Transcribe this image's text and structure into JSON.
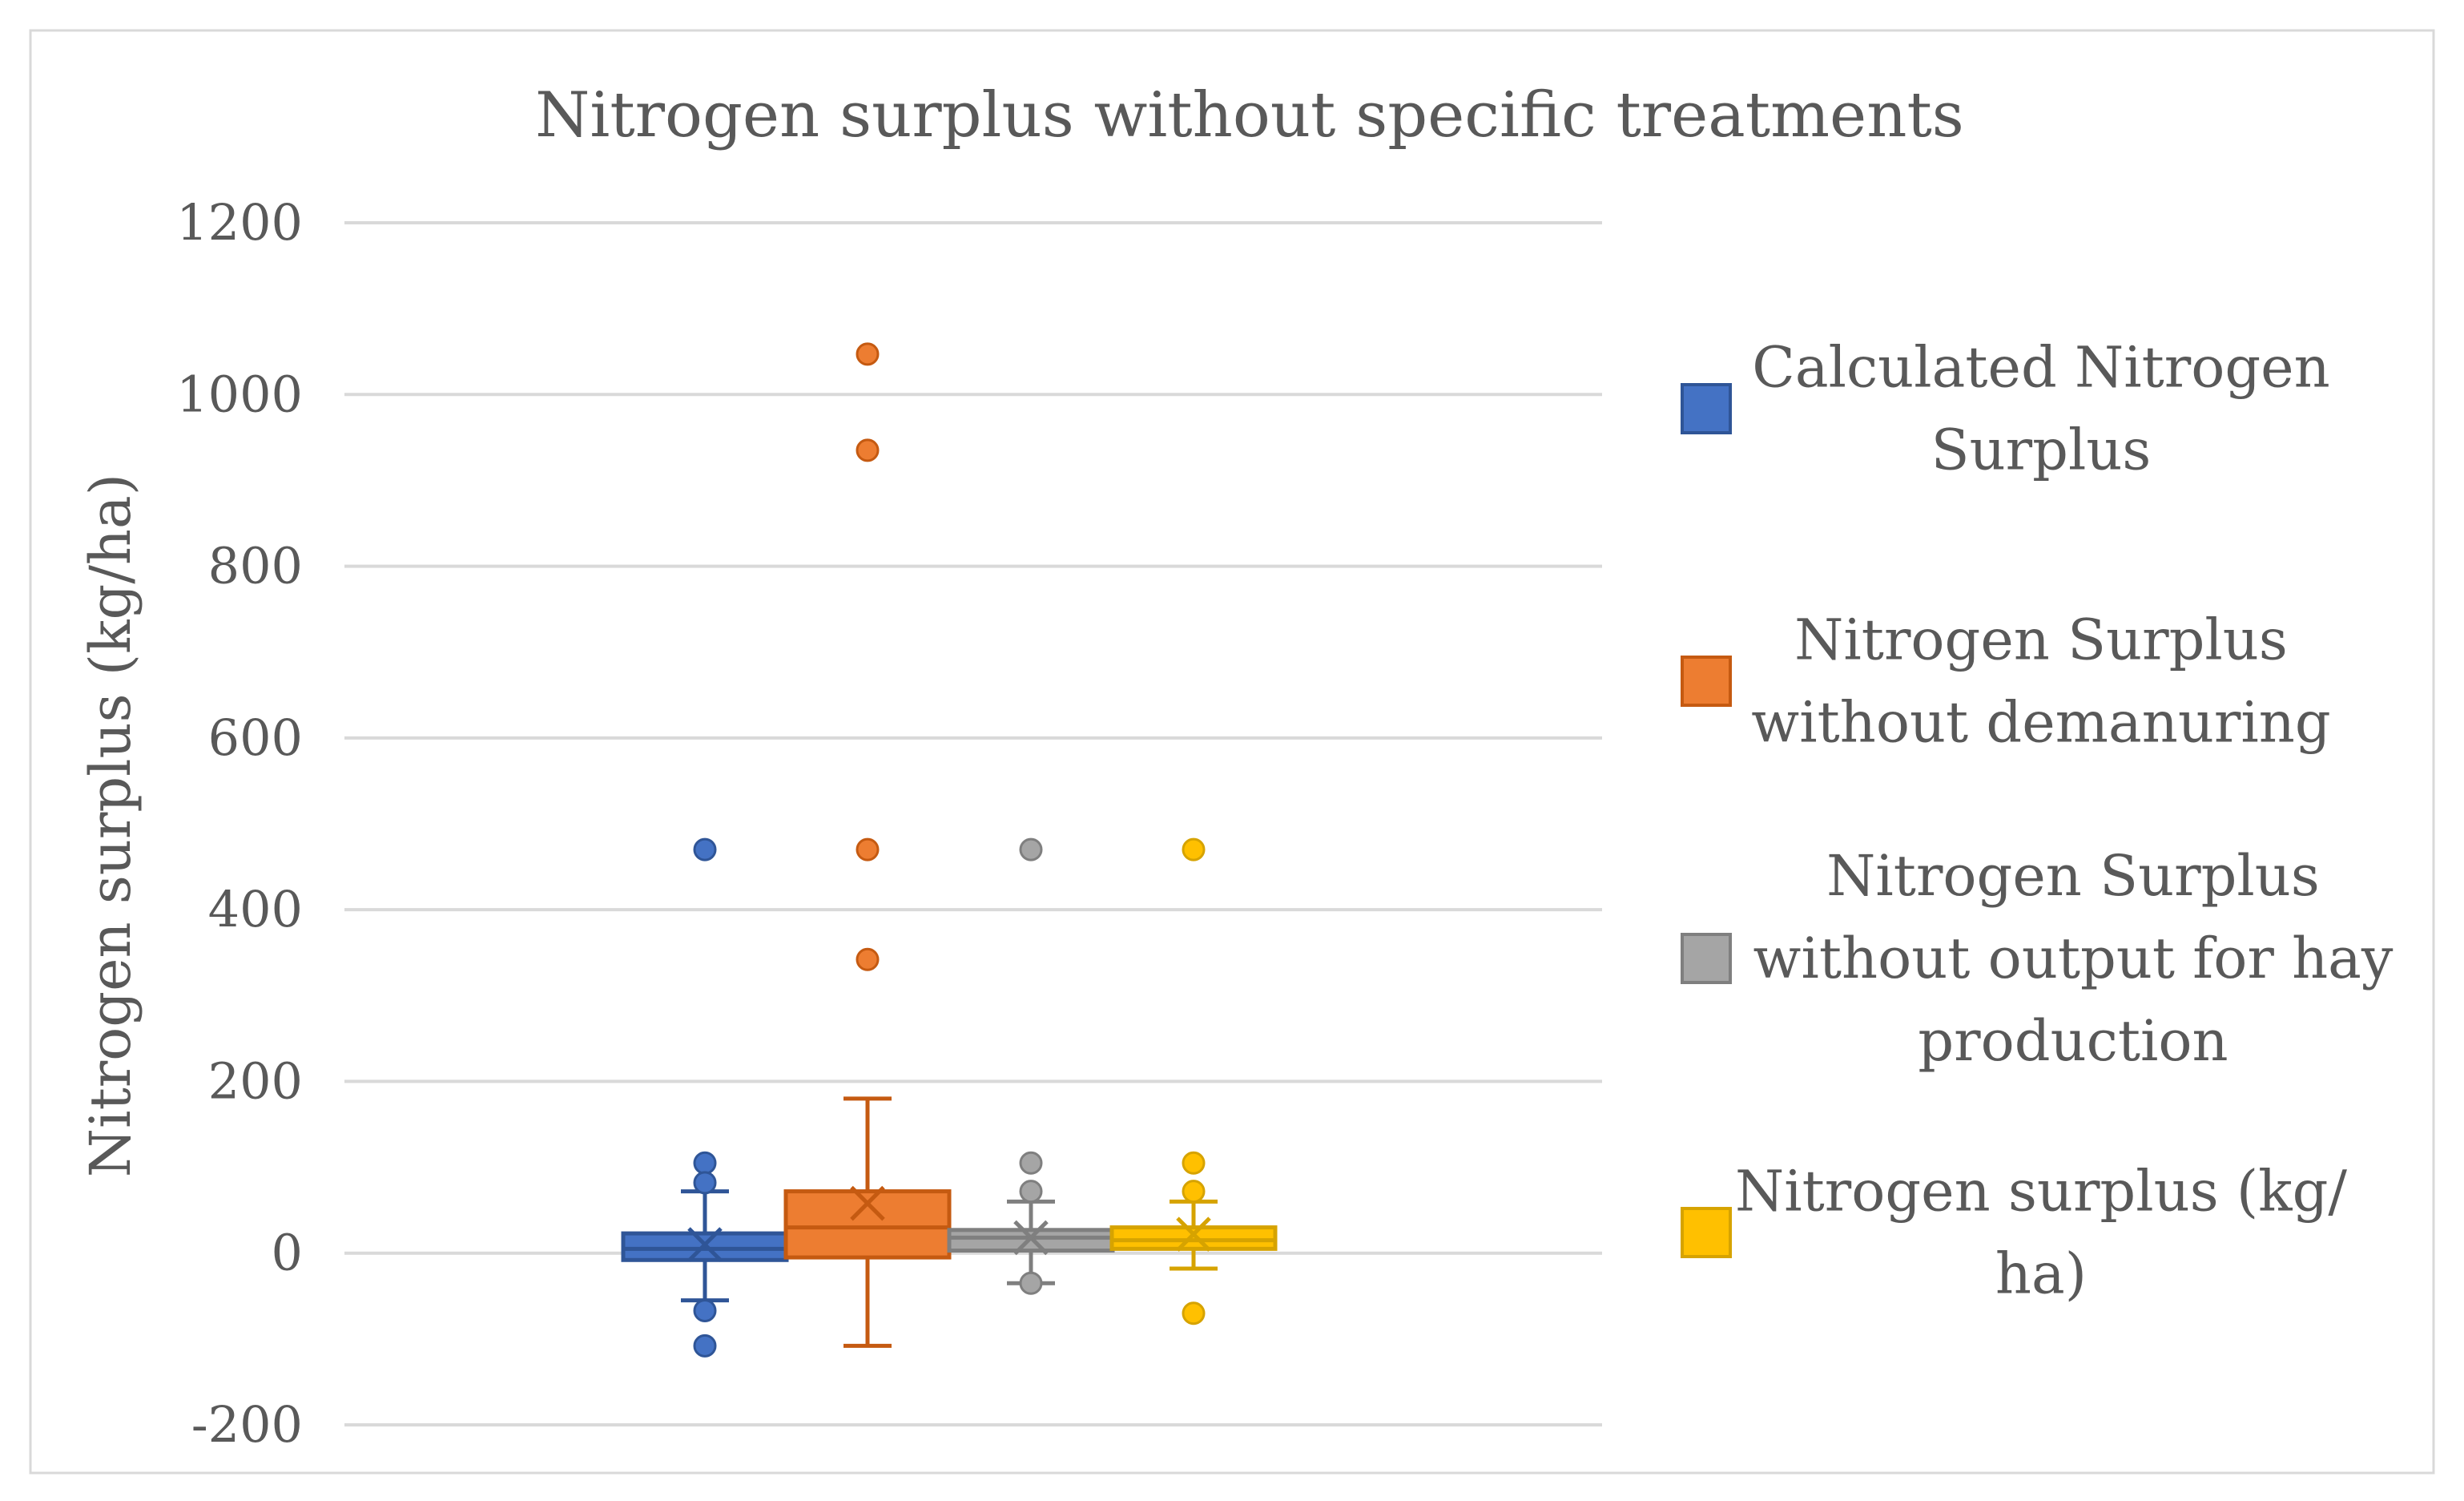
{
  "chart_data": {
    "type": "boxplot",
    "title": "Nitrogen surplus without specific treatments",
    "xlabel": "",
    "ylabel": "Nitrogen surplus (kg/ha)",
    "ylim": [
      -200,
      1200
    ],
    "yticks": [
      -200,
      0,
      200,
      400,
      600,
      800,
      1000,
      1200
    ],
    "grid": true,
    "legend_position": "right",
    "series": [
      {
        "name": "Calculated Nitrogen Surplus",
        "legend_lines": [
          "Calculated Nitrogen",
          "Surplus"
        ],
        "color": "#4472C4",
        "stroke": "#2F5597",
        "whisker_low": -55,
        "q1": -8,
        "median": 5,
        "q3": 23,
        "whisker_high": 72,
        "mean": 10,
        "outliers": [
          470,
          105,
          82,
          -67,
          -108
        ]
      },
      {
        "name": "Nitrogen Surplus without demanuring",
        "legend_lines": [
          "Nitrogen Surplus",
          "without demanuring"
        ],
        "color": "#ED7D31",
        "stroke": "#C55A11",
        "whisker_low": -108,
        "q1": -5,
        "median": 30,
        "q3": 72,
        "whisker_high": 180,
        "mean": 58,
        "outliers": [
          1047,
          935,
          470,
          342
        ]
      },
      {
        "name": "Nitrogen Surplus without output for hay production",
        "legend_lines": [
          "Nitrogen Surplus",
          "without output for hay",
          "production"
        ],
        "color": "#A5A5A5",
        "stroke": "#7F7F7F",
        "whisker_low": -35,
        "q1": 3,
        "median": 18,
        "q3": 27,
        "whisker_high": 60,
        "mean": 18,
        "outliers": [
          470,
          105,
          72,
          -35
        ]
      },
      {
        "name": "Nitrogen surplus (kg/ha)",
        "legend_lines": [
          "Nitrogen surplus (kg/",
          "ha)"
        ],
        "color": "#FFC000",
        "stroke": "#D6A300",
        "whisker_low": -18,
        "q1": 5,
        "median": 15,
        "q3": 30,
        "whisker_high": 60,
        "mean": 22,
        "outliers": [
          470,
          105,
          72,
          -70
        ]
      }
    ]
  }
}
